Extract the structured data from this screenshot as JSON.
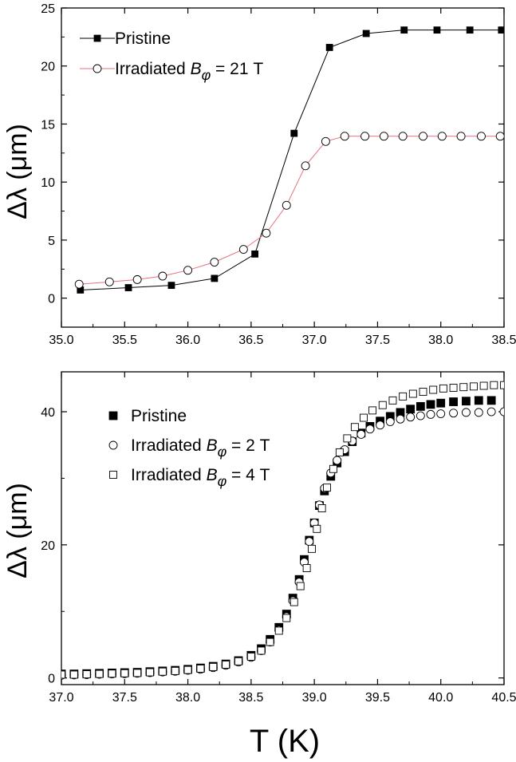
{
  "chart_data": [
    {
      "type": "line",
      "title": "",
      "xlabel": "",
      "ylabel": "Δλ (μm)",
      "xlim": [
        35.0,
        38.5
      ],
      "ylim": [
        -2.5,
        25
      ],
      "xticks": [
        35.0,
        35.5,
        36.0,
        36.5,
        37.0,
        37.5,
        38.0,
        38.5
      ],
      "yticks": [
        0,
        5,
        10,
        15,
        20,
        25
      ],
      "grid": false,
      "legend_position": "top-left",
      "series": [
        {
          "name": "Pristine",
          "marker": "filled-square",
          "line_color": "#000000",
          "x": [
            35.15,
            35.53,
            35.87,
            36.21,
            36.53,
            36.84,
            37.12,
            37.41,
            37.71,
            37.97,
            38.23,
            38.48
          ],
          "y": [
            0.7,
            0.9,
            1.1,
            1.7,
            3.8,
            14.2,
            21.6,
            22.8,
            23.1,
            23.1,
            23.1,
            23.1
          ]
        },
        {
          "name_prefix": "Irradiated ",
          "name_symbol": "B",
          "name_subscript": "φ",
          "name_suffix": " = 21 T",
          "marker": "open-circle",
          "line_color": "#e8707a",
          "x": [
            35.14,
            35.38,
            35.6,
            35.8,
            36.0,
            36.21,
            36.44,
            36.62,
            36.78,
            36.93,
            37.09,
            37.24,
            37.4,
            37.55,
            37.7,
            37.86,
            38.01,
            38.16,
            38.32,
            38.47
          ],
          "y": [
            1.2,
            1.4,
            1.6,
            1.9,
            2.4,
            3.1,
            4.2,
            5.6,
            8.0,
            11.4,
            13.5,
            13.95,
            13.95,
            13.95,
            13.95,
            13.95,
            13.95,
            13.95,
            13.95,
            13.95
          ]
        }
      ]
    },
    {
      "type": "scatter",
      "title": "",
      "xlabel": "T (K)",
      "ylabel": "Δλ (μm)",
      "xlim": [
        37.0,
        40.5
      ],
      "ylim": [
        -1,
        46
      ],
      "xticks": [
        37.0,
        37.5,
        38.0,
        38.5,
        39.0,
        39.5,
        40.0,
        40.5
      ],
      "yticks": [
        0,
        20,
        40
      ],
      "grid": false,
      "legend_position": "top-left",
      "series": [
        {
          "name": "Pristine",
          "marker": "filled-square",
          "x": [
            37.0,
            37.1,
            37.2,
            37.3,
            37.4,
            37.5,
            37.6,
            37.7,
            37.8,
            37.9,
            38.0,
            38.1,
            38.2,
            38.3,
            38.4,
            38.5,
            38.58,
            38.65,
            38.72,
            38.78,
            38.83,
            38.88,
            38.92,
            38.96,
            39.0,
            39.04,
            39.08,
            39.13,
            39.18,
            39.24,
            39.3,
            39.37,
            39.44,
            39.52,
            39.6,
            39.68,
            39.76,
            39.84,
            39.92,
            40.0,
            40.1,
            40.2,
            40.3,
            40.4
          ],
          "y": [
            0.6,
            0.6,
            0.65,
            0.7,
            0.75,
            0.8,
            0.85,
            0.95,
            1.05,
            1.15,
            1.3,
            1.5,
            1.75,
            2.1,
            2.6,
            3.4,
            4.4,
            5.8,
            7.6,
            9.6,
            12.0,
            14.8,
            17.8,
            20.7,
            23.3,
            25.9,
            28.1,
            30.3,
            32.3,
            34.0,
            35.5,
            36.8,
            37.8,
            38.6,
            39.3,
            39.9,
            40.4,
            40.8,
            41.1,
            41.3,
            41.5,
            41.6,
            41.7,
            41.7
          ]
        },
        {
          "name_prefix": "Irradiated ",
          "name_symbol": "B",
          "name_subscript": "φ",
          "name_suffix": " = 2 T",
          "marker": "open-circle",
          "x": [
            37.0,
            37.1,
            37.2,
            37.3,
            37.4,
            37.5,
            37.6,
            37.7,
            37.8,
            37.9,
            38.0,
            38.1,
            38.2,
            38.3,
            38.4,
            38.5,
            38.58,
            38.65,
            38.72,
            38.78,
            38.83,
            38.88,
            38.92,
            38.96,
            39.0,
            39.04,
            39.08,
            39.13,
            39.18,
            39.24,
            39.3,
            39.37,
            39.44,
            39.52,
            39.6,
            39.68,
            39.76,
            39.84,
            39.92,
            40.0,
            40.1,
            40.2,
            40.3,
            40.4,
            40.5
          ],
          "y": [
            0.4,
            0.45,
            0.5,
            0.55,
            0.6,
            0.65,
            0.7,
            0.8,
            0.9,
            1.0,
            1.15,
            1.3,
            1.55,
            1.9,
            2.4,
            3.1,
            4.1,
            5.4,
            7.2,
            9.2,
            11.6,
            14.4,
            17.4,
            20.5,
            23.3,
            26.0,
            28.5,
            30.8,
            32.7,
            34.3,
            35.6,
            36.6,
            37.4,
            38.0,
            38.5,
            38.9,
            39.2,
            39.4,
            39.6,
            39.7,
            39.8,
            39.9,
            39.9,
            40.0,
            40.0
          ]
        },
        {
          "name_prefix": "Irradiated ",
          "name_symbol": "B",
          "name_subscript": "φ",
          "name_suffix": " = 4 T",
          "marker": "open-square",
          "x": [
            37.0,
            37.1,
            37.2,
            37.3,
            37.4,
            37.5,
            37.6,
            37.7,
            37.8,
            37.9,
            38.0,
            38.1,
            38.2,
            38.3,
            38.4,
            38.5,
            38.58,
            38.65,
            38.72,
            38.78,
            38.84,
            38.89,
            38.94,
            38.98,
            39.02,
            39.06,
            39.1,
            39.15,
            39.2,
            39.26,
            39.32,
            39.39,
            39.46,
            39.54,
            39.62,
            39.7,
            39.78,
            39.86,
            39.94,
            40.02,
            40.1,
            40.18,
            40.26,
            40.34,
            40.42,
            40.5
          ],
          "y": [
            0.5,
            0.5,
            0.55,
            0.6,
            0.65,
            0.7,
            0.75,
            0.85,
            0.95,
            1.05,
            1.2,
            1.4,
            1.65,
            2.0,
            2.5,
            3.2,
            4.1,
            5.4,
            7.1,
            9.0,
            11.4,
            13.8,
            16.5,
            19.4,
            22.4,
            25.5,
            28.6,
            31.4,
            33.9,
            36.0,
            37.7,
            39.1,
            40.2,
            41.0,
            41.7,
            42.3,
            42.7,
            43.0,
            43.3,
            43.5,
            43.6,
            43.7,
            43.8,
            43.9,
            44.0,
            44.0
          ]
        }
      ]
    }
  ]
}
